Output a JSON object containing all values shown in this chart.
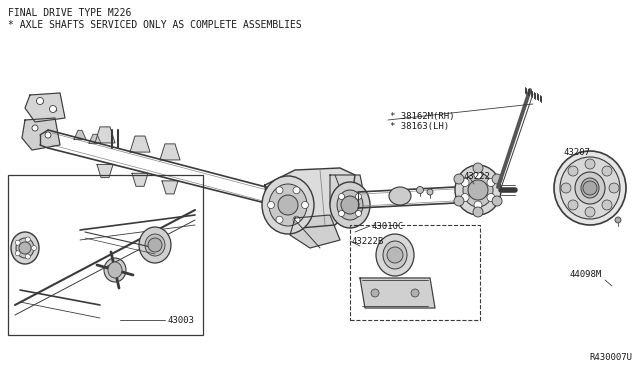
{
  "title_line1": "FINAL DRIVE TYPE M226",
  "title_line2": "* AXLE SHAFTS SERVICED ONLY AS COMPLETE ASSEMBLIES",
  "ref_number": "R430007U",
  "bg_color": "#ffffff",
  "line_color": "#3a3a3a",
  "text_color": "#1a1a1a",
  "title_fontsize": 7.0,
  "label_fontsize": 6.5,
  "figsize": [
    6.4,
    3.72
  ],
  "dpi": 100
}
